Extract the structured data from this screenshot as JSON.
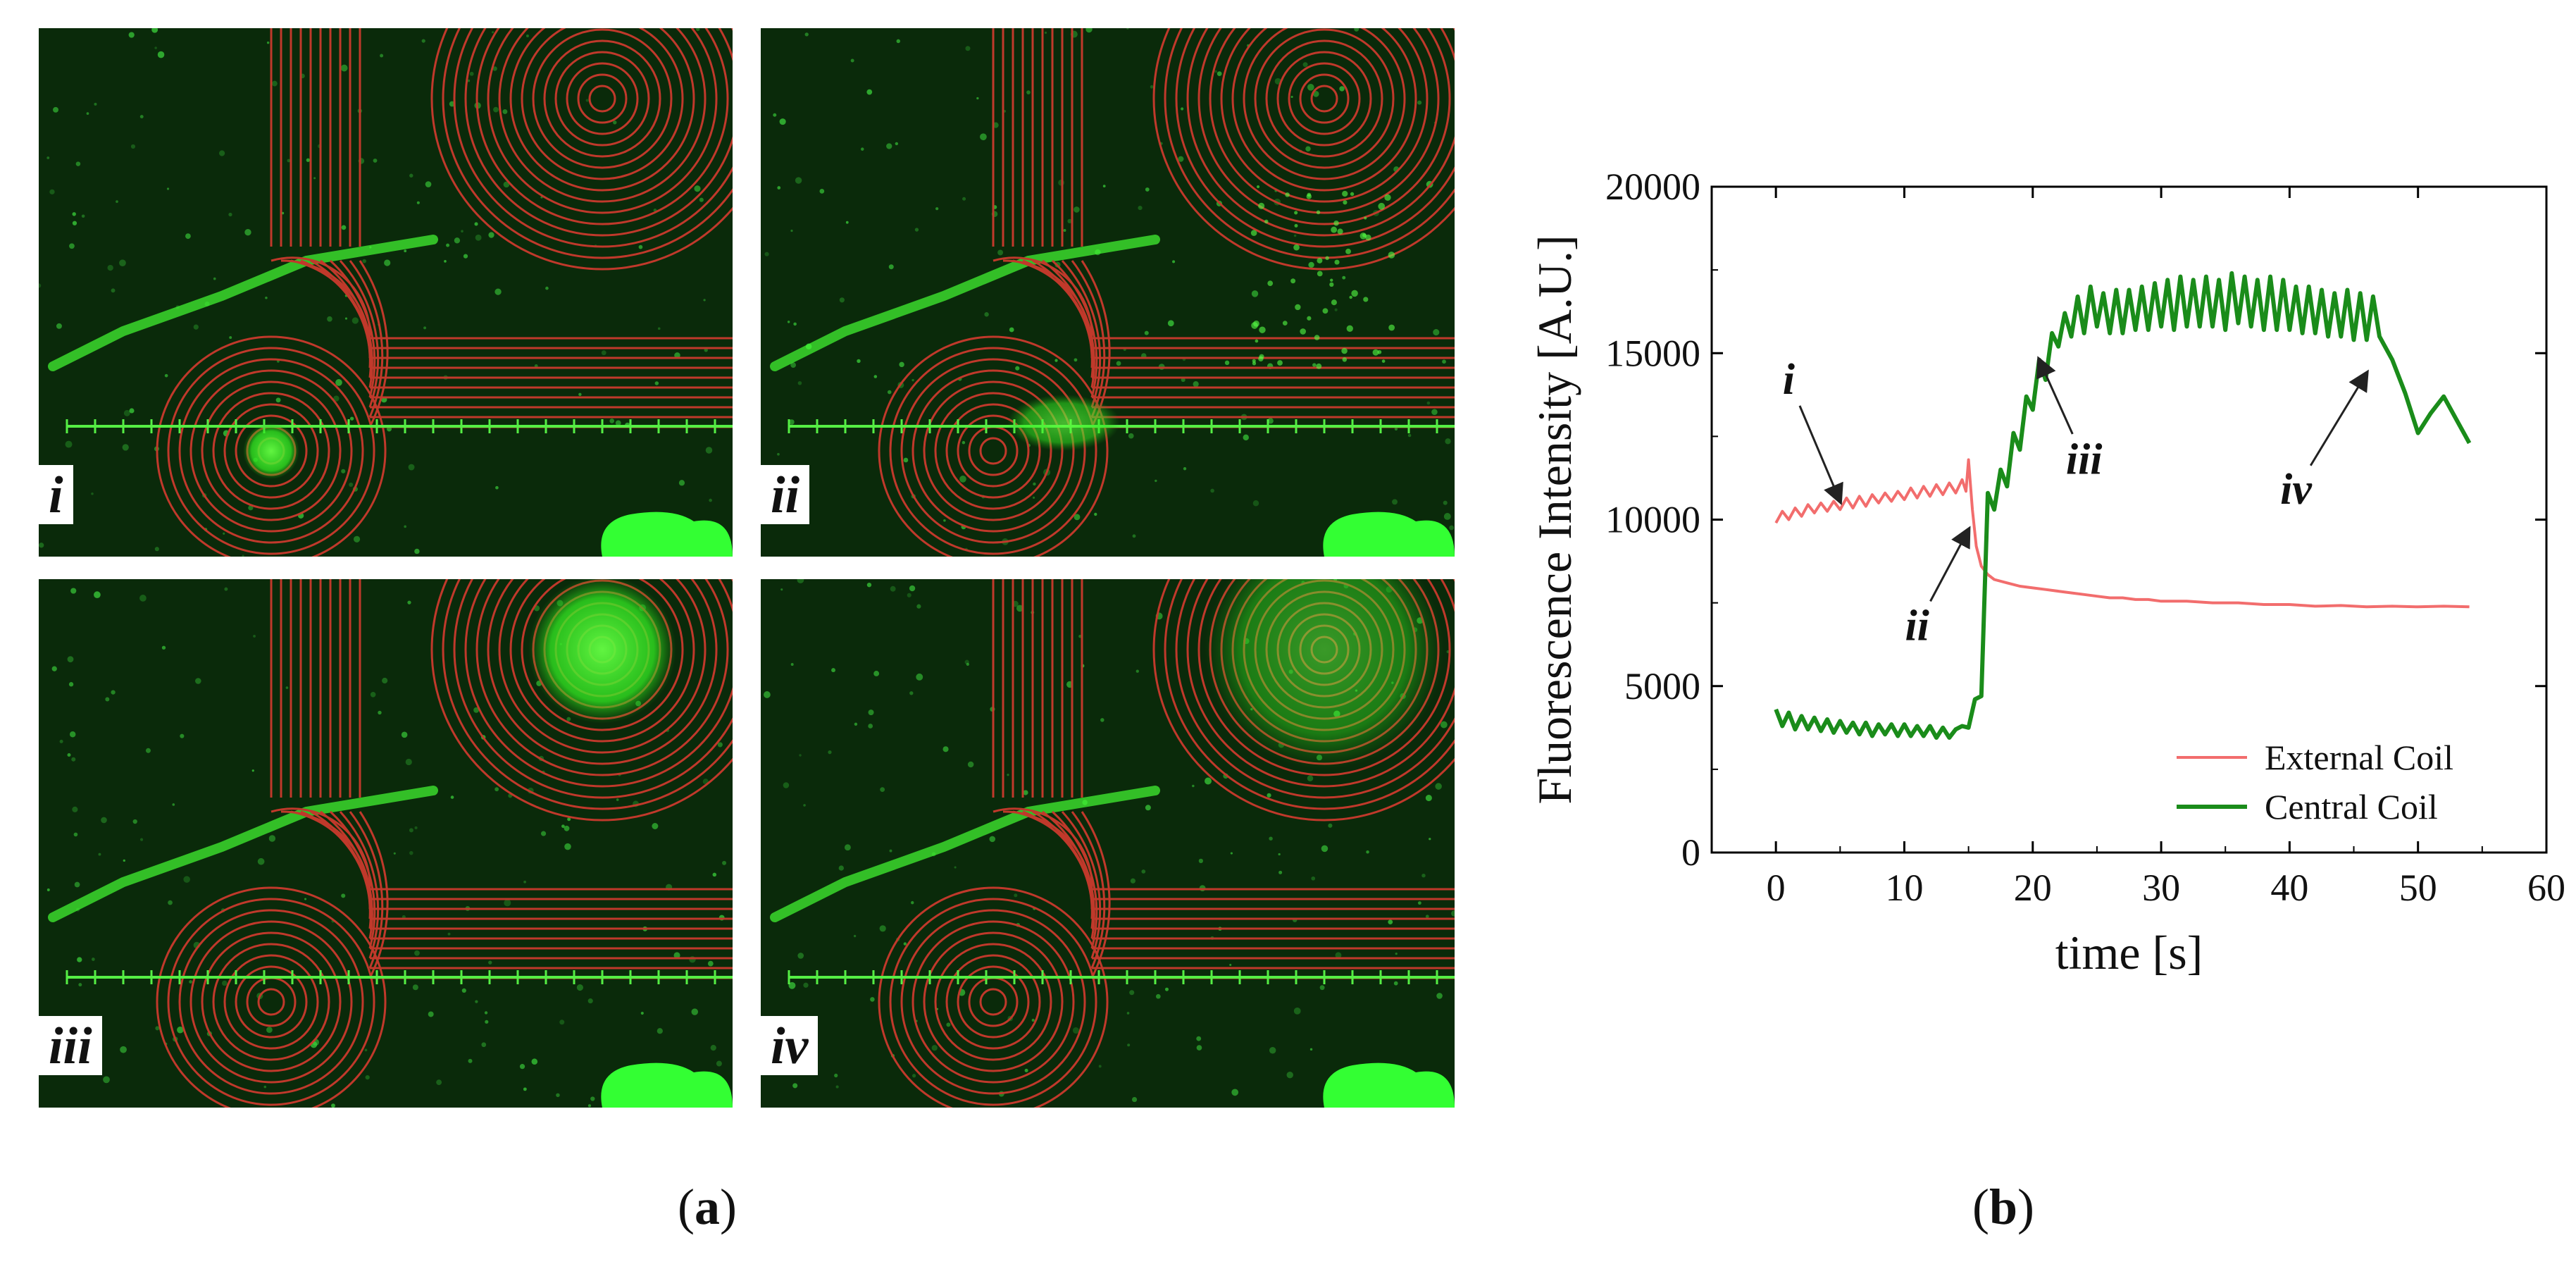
{
  "panel_a": {
    "label_open": "(",
    "label_letter": "a",
    "label_close": ")",
    "micrographs": [
      {
        "id": "i",
        "label": "i",
        "glow": "external"
      },
      {
        "id": "ii",
        "label": "ii",
        "glow": "transition"
      },
      {
        "id": "iii",
        "label": "iii",
        "glow": "central"
      },
      {
        "id": "iv",
        "label": "iv",
        "glow": "central-dim"
      }
    ],
    "colors": {
      "background": "#0a2a0a",
      "coil": "#c0392b",
      "fluorescence": "#33ff33"
    }
  },
  "panel_b": {
    "label_open": "(",
    "label_letter": "b",
    "label_close": ")"
  },
  "chart_data": {
    "type": "line",
    "xlabel": "time [s]",
    "ylabel": "Fluorescence Intensity [A.U.]",
    "xlim": [
      -5,
      60
    ],
    "ylim": [
      0,
      20000
    ],
    "xticks": [
      0,
      10,
      20,
      30,
      40,
      50,
      60
    ],
    "yticks": [
      0,
      5000,
      10000,
      15000,
      20000
    ],
    "legend_position": "bottom-right",
    "grid": false,
    "series": [
      {
        "name": "External Coil",
        "color": "#f26d6d",
        "x": [
          0,
          0.5,
          1,
          1.5,
          2,
          2.5,
          3,
          3.5,
          4,
          4.5,
          5,
          5.5,
          6,
          6.5,
          7,
          7.5,
          8,
          8.5,
          9,
          9.5,
          10,
          10.5,
          11,
          11.5,
          12,
          12.5,
          13,
          13.5,
          14,
          14.5,
          14.8,
          15,
          15.3,
          15.6,
          16,
          16.5,
          17,
          18,
          19,
          20,
          21,
          22,
          23,
          24,
          25,
          26,
          27,
          28,
          29,
          30,
          32,
          34,
          36,
          38,
          40,
          42,
          44,
          46,
          48,
          50,
          52,
          54
        ],
        "y": [
          9900,
          10250,
          10000,
          10350,
          10100,
          10450,
          10200,
          10500,
          10250,
          10550,
          10300,
          10650,
          10350,
          10700,
          10400,
          10750,
          10500,
          10800,
          10550,
          10850,
          10600,
          10950,
          10650,
          11000,
          10700,
          11050,
          10750,
          11100,
          10800,
          11200,
          10850,
          11800,
          10300,
          9200,
          8600,
          8350,
          8200,
          8100,
          8000,
          7950,
          7900,
          7850,
          7800,
          7750,
          7700,
          7650,
          7650,
          7600,
          7600,
          7550,
          7550,
          7500,
          7500,
          7450,
          7450,
          7400,
          7420,
          7380,
          7400,
          7380,
          7400,
          7380
        ]
      },
      {
        "name": "Central Coil",
        "color": "#1a8c1a",
        "x": [
          0,
          0.5,
          1,
          1.5,
          2,
          2.5,
          3,
          3.5,
          4,
          4.5,
          5,
          5.5,
          6,
          6.5,
          7,
          7.5,
          8,
          8.5,
          9,
          9.5,
          10,
          10.5,
          11,
          11.5,
          12,
          12.5,
          13,
          13.5,
          14,
          14.5,
          15,
          15.5,
          16,
          16.5,
          17,
          17.5,
          18,
          18.5,
          19,
          19.5,
          20,
          20.5,
          21,
          21.5,
          22,
          22.5,
          23,
          23.5,
          24,
          24.5,
          25,
          25.5,
          26,
          26.5,
          27,
          27.5,
          28,
          28.5,
          29,
          29.5,
          30,
          30.5,
          31,
          31.5,
          32,
          32.5,
          33,
          33.5,
          34,
          34.5,
          35,
          35.5,
          36,
          36.5,
          37,
          37.5,
          38,
          38.5,
          39,
          39.5,
          40,
          40.5,
          41,
          41.5,
          42,
          42.5,
          43,
          43.5,
          44,
          44.5,
          45,
          45.5,
          46,
          46.5,
          47,
          48,
          49,
          50,
          51,
          52,
          53,
          54
        ],
        "y": [
          4300,
          3800,
          4200,
          3700,
          4100,
          3700,
          4050,
          3650,
          4000,
          3600,
          3950,
          3600,
          3900,
          3550,
          3900,
          3500,
          3850,
          3550,
          3850,
          3500,
          3850,
          3500,
          3800,
          3500,
          3800,
          3450,
          3750,
          3450,
          3700,
          3800,
          3750,
          4600,
          4700,
          10800,
          10300,
          11500,
          11000,
          12600,
          12100,
          13700,
          13300,
          14800,
          14200,
          15600,
          15200,
          16200,
          15500,
          16700,
          15600,
          17000,
          15800,
          16800,
          15600,
          16900,
          15600,
          16900,
          15700,
          17000,
          15700,
          17100,
          15800,
          17200,
          15700,
          17300,
          15800,
          17200,
          15800,
          17300,
          15800,
          17200,
          15700,
          17400,
          15900,
          17300,
          15800,
          17200,
          15700,
          17300,
          15700,
          17200,
          15700,
          17000,
          15600,
          17000,
          15600,
          16900,
          15500,
          16800,
          15500,
          16900,
          15400,
          16800,
          15400,
          16700,
          15500,
          14800,
          13800,
          12600,
          13200,
          13700,
          13000,
          12300
        ]
      }
    ],
    "annotations": [
      {
        "text": "i",
        "x_text": 1.0,
        "y_text": 14200,
        "x_point": 5.0,
        "y_point": 10550
      },
      {
        "text": "ii",
        "x_text": 11.0,
        "y_text": 6800,
        "x_point": 15.0,
        "y_point": 9700
      },
      {
        "text": "iii",
        "x_text": 24.0,
        "y_text": 11800,
        "x_point": 20.5,
        "y_point": 14800
      },
      {
        "text": "iv",
        "x_text": 40.5,
        "y_text": 10900,
        "x_point": 46.0,
        "y_point": 14400
      }
    ]
  }
}
